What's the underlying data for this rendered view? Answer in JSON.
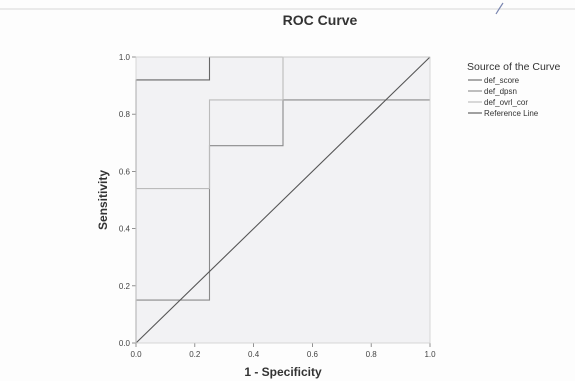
{
  "chart_data": {
    "type": "line",
    "title": "ROC Curve",
    "xlabel": "1 - Specificity",
    "ylabel": "Sensitivity",
    "xlim": [
      0,
      1
    ],
    "ylim": [
      0,
      1
    ],
    "x_ticks": [
      "0.0",
      "0.2",
      "0.4",
      "0.6",
      "0.8",
      "1.0"
    ],
    "y_ticks": [
      "0.0",
      "0.2",
      "0.4",
      "0.6",
      "0.8",
      "1.0"
    ],
    "grid": false,
    "legend": {
      "title": "Source of the Curve",
      "position": "top-right"
    },
    "series": [
      {
        "name": "def_score",
        "color": "#666666",
        "x": [
          0,
          0,
          0.25,
          0.25,
          1.0
        ],
        "y": [
          0,
          0.92,
          0.92,
          1.0,
          1.0
        ]
      },
      {
        "name": "def_dpsn",
        "color": "#8a8a8a",
        "x": [
          0,
          0,
          0.25,
          0.25,
          0.5,
          0.5,
          1.0
        ],
        "y": [
          0,
          0.15,
          0.15,
          0.69,
          0.69,
          0.85,
          0.85
        ]
      },
      {
        "name": "def_ovrl_cor",
        "color": "#bbbbbb",
        "x": [
          0,
          0,
          0.25,
          0.25,
          0.5,
          0.5,
          1.0
        ],
        "y": [
          0,
          0.54,
          0.54,
          0.85,
          0.85,
          1.0,
          1.0
        ]
      },
      {
        "name": "Reference Line",
        "color": "#555555",
        "x": [
          0,
          1
        ],
        "y": [
          0,
          1
        ]
      }
    ]
  }
}
